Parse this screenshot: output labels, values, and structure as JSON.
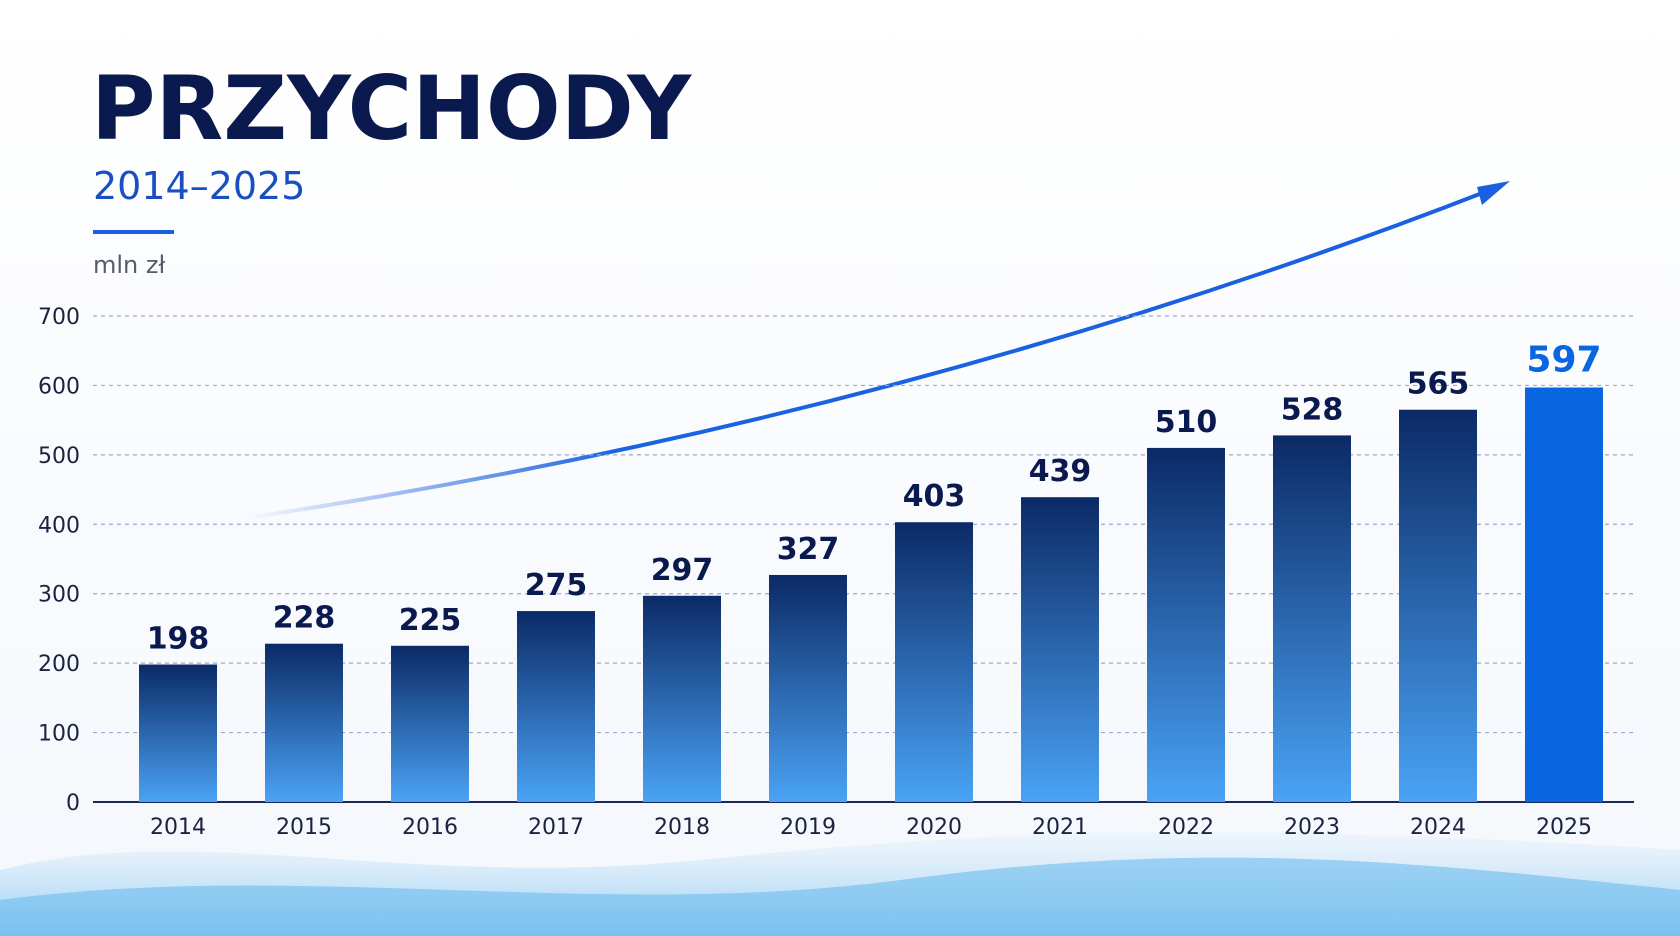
{
  "chart_data": {
    "type": "bar",
    "title": "PRZYCHODY",
    "subtitle": "2014–2025",
    "y_label": "mln zł",
    "categories": [
      "2014",
      "2015",
      "2016",
      "2017",
      "2018",
      "2019",
      "2020",
      "2021",
      "2022",
      "2023",
      "2024",
      "2025"
    ],
    "values": [
      198,
      228,
      225,
      275,
      297,
      327,
      403,
      439,
      510,
      528,
      565,
      597
    ],
    "bar_gradient": [
      "#0b2a66",
      "#4aa3f5"
    ],
    "highlight_color": "#0a66e0",
    "ylim": [
      0,
      700
    ],
    "yticks": [
      0,
      100,
      200,
      300,
      400,
      500,
      600,
      700
    ],
    "grid": true
  }
}
